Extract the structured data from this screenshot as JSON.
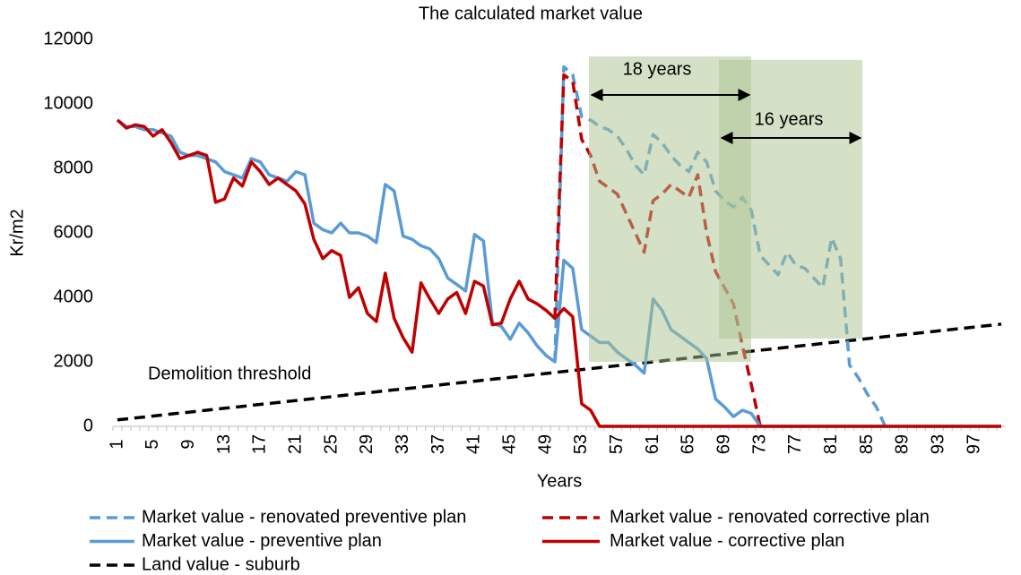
{
  "chart_data": {
    "type": "line",
    "title": "The calculated market value",
    "x_label": "Years",
    "y_label": "Kr/m2",
    "categories": [
      "1",
      null,
      null,
      null,
      "5",
      null,
      null,
      null,
      "9",
      null,
      null,
      null,
      "13",
      null,
      null,
      null,
      "17",
      null,
      null,
      null,
      "21",
      null,
      null,
      null,
      "25",
      null,
      null,
      null,
      "29",
      null,
      null,
      null,
      "33",
      null,
      null,
      null,
      "37",
      null,
      null,
      null,
      "41",
      null,
      null,
      null,
      "45",
      null,
      null,
      null,
      "49",
      null,
      null,
      null,
      "53",
      null,
      null,
      null,
      "57",
      null,
      null,
      null,
      "61",
      null,
      null,
      null,
      "65",
      null,
      null,
      null,
      "69",
      null,
      null,
      null,
      "73",
      null,
      null,
      null,
      "77",
      null,
      null,
      null,
      "81",
      null,
      null,
      null,
      "85",
      null,
      null,
      null,
      "89",
      null,
      null,
      null,
      "93",
      null,
      null,
      null,
      "97",
      null,
      null,
      null
    ],
    "ylim": [
      0,
      12000
    ],
    "yticks": [
      0,
      2000,
      4000,
      6000,
      8000,
      10000,
      12000
    ],
    "grid": false,
    "annotations": [
      "Demolition threshold",
      "18 years",
      "16 years"
    ],
    "series": [
      {
        "name": "Market value - renovated preventive plan",
        "color": "#5b9bd5",
        "dashed": true,
        "values": [
          null,
          null,
          null,
          null,
          null,
          null,
          null,
          null,
          null,
          null,
          null,
          null,
          null,
          null,
          null,
          null,
          null,
          null,
          null,
          null,
          null,
          null,
          null,
          null,
          null,
          null,
          null,
          null,
          null,
          null,
          null,
          null,
          null,
          null,
          null,
          null,
          null,
          null,
          null,
          null,
          null,
          null,
          null,
          null,
          null,
          null,
          null,
          null,
          null,
          2000,
          11150,
          10900,
          9600,
          9500,
          9300,
          9200,
          9000,
          8600,
          8100,
          7800,
          9050,
          8800,
          8400,
          8100,
          7900,
          8500,
          8200,
          7300,
          7000,
          6800,
          7100,
          6700,
          5300,
          5000,
          4700,
          5400,
          5000,
          4900,
          4600,
          4300,
          5850,
          5200,
          1900,
          1500,
          1000,
          600,
          0,
          null,
          null,
          null,
          null,
          null,
          null,
          null,
          null,
          null,
          null,
          null,
          null,
          null
        ]
      },
      {
        "name": "Market value - renovated corrective plan",
        "color": "#c00000",
        "dashed": true,
        "values": [
          null,
          null,
          null,
          null,
          null,
          null,
          null,
          null,
          null,
          null,
          null,
          null,
          null,
          null,
          null,
          null,
          null,
          null,
          null,
          null,
          null,
          null,
          null,
          null,
          null,
          null,
          null,
          null,
          null,
          null,
          null,
          null,
          null,
          null,
          null,
          null,
          null,
          null,
          null,
          null,
          null,
          null,
          null,
          null,
          null,
          null,
          null,
          null,
          null,
          3350,
          10900,
          10700,
          8900,
          8400,
          7600,
          7400,
          7200,
          6600,
          6000,
          5400,
          7000,
          7200,
          7500,
          7300,
          7100,
          7800,
          6000,
          4800,
          4300,
          3800,
          2500,
          1300,
          0,
          null,
          null,
          null,
          null,
          null,
          null,
          null,
          null,
          null,
          null,
          null,
          null,
          null,
          null,
          null,
          null,
          null,
          null,
          null,
          null,
          null,
          null,
          null,
          null,
          null,
          null,
          null
        ]
      },
      {
        "name": "Market value - preventive plan",
        "color": "#5b9bd5",
        "dashed": false,
        "values": [
          9500,
          9300,
          9300,
          9200,
          9200,
          9100,
          9000,
          8500,
          8400,
          8400,
          8300,
          8200,
          7900,
          7800,
          7700,
          8300,
          8200,
          7800,
          7700,
          7600,
          7900,
          7800,
          6300,
          6100,
          6000,
          6300,
          6000,
          6000,
          5900,
          5700,
          7500,
          7300,
          5900,
          5800,
          5600,
          5500,
          5200,
          4600,
          4400,
          4200,
          5950,
          5750,
          3200,
          3100,
          2700,
          3200,
          2900,
          2500,
          2200,
          2000,
          5150,
          4900,
          3000,
          2800,
          2600,
          2600,
          2300,
          2100,
          1900,
          1650,
          3950,
          3600,
          3000,
          2800,
          2600,
          2400,
          2100,
          850,
          600,
          300,
          500,
          400,
          0,
          0,
          0,
          0,
          0,
          0,
          0,
          0,
          0,
          0,
          0,
          0,
          0,
          0,
          0,
          0,
          0,
          0,
          0,
          0,
          0,
          0,
          0,
          0,
          0,
          0,
          0,
          0
        ]
      },
      {
        "name": "Market value - corrective plan",
        "color": "#c00000",
        "dashed": false,
        "values": [
          9500,
          9250,
          9350,
          9300,
          9000,
          9200,
          8800,
          8300,
          8400,
          8500,
          8400,
          6950,
          7050,
          7700,
          7450,
          8200,
          7900,
          7500,
          7700,
          7500,
          7300,
          6900,
          5800,
          5200,
          5450,
          5300,
          4000,
          4300,
          3500,
          3250,
          4750,
          3350,
          2750,
          2300,
          4450,
          3950,
          3500,
          3950,
          4150,
          3500,
          4500,
          4350,
          3150,
          3200,
          3950,
          4500,
          3950,
          3800,
          3600,
          3350,
          3650,
          3400,
          700,
          500,
          0,
          0,
          0,
          0,
          0,
          0,
          0,
          0,
          0,
          0,
          0,
          0,
          0,
          0,
          0,
          0,
          0,
          0,
          0,
          0,
          0,
          0,
          0,
          0,
          0,
          0,
          0,
          0,
          0,
          0,
          0,
          0,
          0,
          0,
          0,
          0,
          0,
          0,
          0,
          0,
          0,
          0,
          0,
          0,
          0,
          0
        ]
      },
      {
        "name": "Land value - suburb",
        "color": "#000000",
        "dashed": true,
        "values": [
          200,
          230,
          260,
          290,
          320,
          350,
          380,
          410,
          440,
          470,
          500,
          530,
          560,
          590,
          620,
          650,
          680,
          710,
          740,
          770,
          800,
          830,
          860,
          890,
          920,
          950,
          980,
          1010,
          1040,
          1070,
          1100,
          1130,
          1160,
          1190,
          1220,
          1250,
          1280,
          1310,
          1340,
          1370,
          1400,
          1430,
          1460,
          1490,
          1520,
          1550,
          1580,
          1610,
          1640,
          1670,
          1700,
          1730,
          1760,
          1790,
          1820,
          1850,
          1880,
          1910,
          1940,
          1970,
          2000,
          2030,
          2060,
          2090,
          2120,
          2150,
          2180,
          2210,
          2240,
          2270,
          2300,
          2330,
          2360,
          2390,
          2420,
          2450,
          2480,
          2510,
          2540,
          2570,
          2600,
          2630,
          2660,
          2690,
          2720,
          2750,
          2780,
          2810,
          2840,
          2870,
          2900,
          2930,
          2960,
          2990,
          3020,
          3050,
          3080,
          3110,
          3140,
          3170
        ]
      }
    ]
  }
}
